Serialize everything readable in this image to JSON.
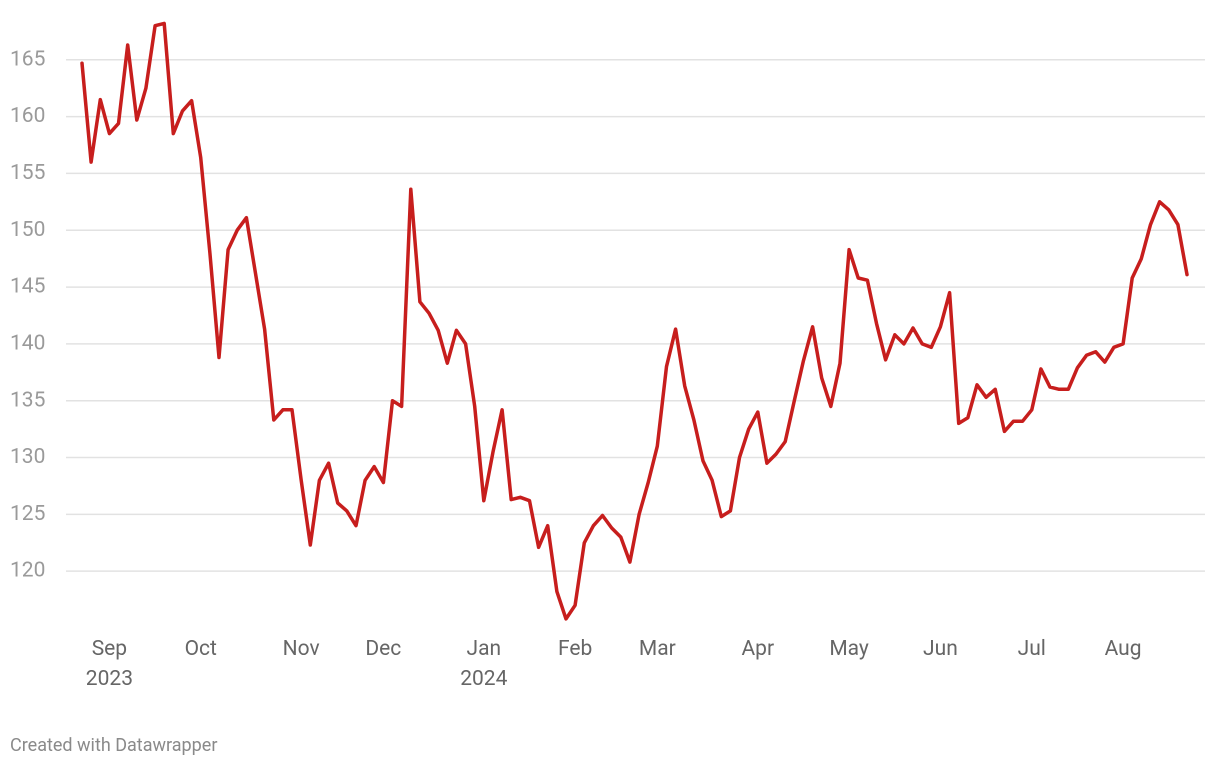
{
  "chart_data": {
    "type": "line",
    "categories": [
      null,
      null,
      null,
      "Sep 2023",
      null,
      null,
      null,
      null,
      null,
      null,
      null,
      null,
      null,
      "Oct",
      null,
      null,
      null,
      null,
      null,
      null,
      null,
      null,
      null,
      null,
      "Nov",
      null,
      null,
      null,
      null,
      null,
      null,
      null,
      null,
      "Dec",
      null,
      null,
      null,
      null,
      null,
      null,
      null,
      null,
      null,
      null,
      "Jan 2024",
      null,
      null,
      null,
      null,
      null,
      null,
      null,
      null,
      null,
      "Feb",
      null,
      null,
      null,
      null,
      null,
      null,
      null,
      null,
      "Mar",
      null,
      null,
      null,
      null,
      null,
      null,
      null,
      null,
      null,
      null,
      "Apr",
      null,
      null,
      null,
      null,
      null,
      null,
      null,
      null,
      null,
      "May",
      null,
      null,
      null,
      null,
      null,
      null,
      null,
      null,
      null,
      "Jun",
      null,
      null,
      null,
      null,
      null,
      null,
      null,
      null,
      null,
      "Jul",
      null,
      null,
      null,
      null,
      null,
      null,
      null,
      null,
      null,
      "Aug",
      null,
      null,
      null,
      null,
      null,
      null,
      null
    ],
    "values": [
      164.7,
      156,
      161.5,
      158.5,
      159.4,
      166.3,
      159.7,
      162.5,
      168,
      168.2,
      158.5,
      160.5,
      161.4,
      156.4,
      148,
      138.8,
      148.3,
      150,
      151.1,
      146.2,
      141.3,
      133.3,
      134.2,
      134.2,
      128,
      122.3,
      128,
      129.5,
      126,
      125.3,
      124,
      128,
      129.2,
      127.8,
      135,
      134.5,
      153.6,
      143.7,
      142.7,
      141.2,
      138.3,
      141.2,
      140,
      134.5,
      126.2,
      130.5,
      134.2,
      126.3,
      126.5,
      126.2,
      122.1,
      124,
      118.2,
      115.8,
      117,
      122.5,
      124,
      124.9,
      123.8,
      123,
      120.8,
      125,
      127.8,
      131,
      138,
      141.3,
      136.3,
      133.3,
      129.7,
      128,
      124.8,
      125.3,
      130,
      132.5,
      134,
      129.5,
      130.3,
      131.4,
      135,
      138.5,
      141.5,
      137,
      134.5,
      138.3,
      148.3,
      145.8,
      145.6,
      141.8,
      138.6,
      140.8,
      140,
      141.4,
      140,
      139.7,
      141.5,
      144.5,
      133,
      133.5,
      136.4,
      135.3,
      136,
      132.3,
      133.2,
      133.2,
      134.2,
      137.8,
      136.2,
      136,
      136,
      137.9,
      139,
      139.3,
      138.4,
      139.7,
      140,
      145.8,
      147.5,
      150.5,
      152.5,
      151.8,
      150.5,
      146.1
    ],
    "color": "#c71e1d",
    "ylim": [
      115,
      168.5
    ],
    "yticks": [
      120,
      125,
      130,
      135,
      140,
      145,
      150,
      155,
      160,
      165
    ],
    "grid": true,
    "credit": "Created with Datawrapper"
  }
}
